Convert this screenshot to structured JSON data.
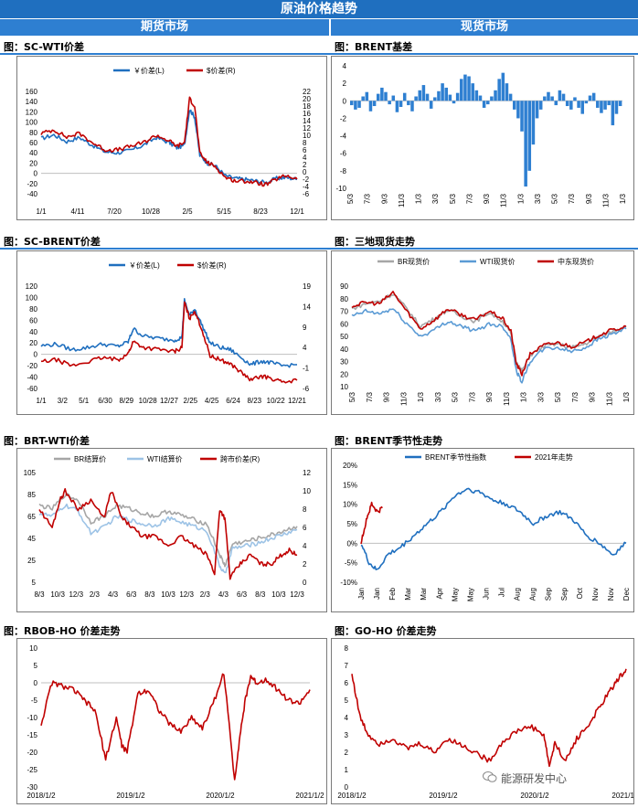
{
  "header": {
    "title": "原油价格趋势",
    "left_market": "期货市场",
    "right_market": "现货市场"
  },
  "watermark": "能源研发中心",
  "chart_data": [
    {
      "id": "c1",
      "type": "line",
      "title": "图：SC-WTI价差",
      "legend": [
        "￥价差(L)",
        "$价差(R)"
      ],
      "yticks_left": [
        -40,
        -20,
        0,
        20,
        40,
        60,
        80,
        100,
        120,
        140,
        160
      ],
      "ylim_left": [
        -40,
        160
      ],
      "yticks_right": [
        -6,
        -4,
        -2,
        0,
        2,
        4,
        6,
        8,
        10,
        12,
        14,
        16,
        18,
        20,
        22
      ],
      "ylim_right": [
        -6,
        22
      ],
      "xticks": [
        "1/1",
        "4/11",
        "7/20",
        "10/28",
        "2/5",
        "5/15",
        "8/23",
        "12/1"
      ],
      "series": [
        {
          "name": "￥价差(L)",
          "axis": "left",
          "color": "#1f6fbf",
          "x": [
            0,
            0.05,
            0.1,
            0.15,
            0.2,
            0.25,
            0.3,
            0.35,
            0.4,
            0.45,
            0.5,
            0.53,
            0.56,
            0.58,
            0.6,
            0.62,
            0.65,
            0.68,
            0.72,
            0.76,
            0.8,
            0.84,
            0.88,
            0.92,
            0.96,
            1
          ],
          "values": [
            68,
            75,
            62,
            70,
            55,
            42,
            40,
            45,
            55,
            70,
            60,
            50,
            55,
            125,
            110,
            35,
            20,
            15,
            -5,
            -10,
            -12,
            -15,
            -18,
            -10,
            -8,
            -12
          ]
        },
        {
          "name": "$价差(R)",
          "axis": "right",
          "color": "#c00000",
          "x": [
            0,
            0.05,
            0.1,
            0.15,
            0.2,
            0.25,
            0.3,
            0.35,
            0.4,
            0.45,
            0.5,
            0.53,
            0.56,
            0.58,
            0.6,
            0.62,
            0.65,
            0.68,
            0.72,
            0.76,
            0.8,
            0.84,
            0.88,
            0.92,
            0.96,
            1
          ],
          "values": [
            10.5,
            11.5,
            9.5,
            10.5,
            8,
            6,
            6,
            7,
            8,
            10,
            8.5,
            7,
            8,
            20,
            18,
            5,
            2.5,
            1.5,
            -1.5,
            -2.5,
            -2.5,
            -3,
            -3.5,
            -2,
            -1,
            -2
          ]
        }
      ]
    },
    {
      "id": "c2",
      "type": "bar",
      "title": "图：BRENT基差",
      "yticks": [
        -10,
        -8,
        -6,
        -4,
        -2,
        0,
        2,
        4
      ],
      "ylim": [
        -10,
        4
      ],
      "xticks": [
        "5/3",
        "7/3",
        "9/3",
        "11/3",
        "1/3",
        "3/3",
        "5/3",
        "7/3",
        "9/3",
        "11/3",
        "1/3",
        "3/3",
        "5/3",
        "7/3",
        "9/3",
        "11/3",
        "1/3"
      ],
      "color": "#2e7fd1",
      "values": [
        -0.5,
        -1,
        -0.8,
        0.5,
        1,
        -1.2,
        -0.6,
        0.8,
        1.5,
        1.0,
        -0.4,
        0.6,
        -1.3,
        -0.7,
        0.9,
        -0.5,
        -1.2,
        0.5,
        1.2,
        1.8,
        0.8,
        -0.9,
        0.4,
        1.1,
        2.0,
        1.5,
        0.7,
        -0.3,
        0.9,
        2.5,
        3.0,
        2.8,
        2.0,
        1.2,
        0.6,
        -0.8,
        -0.4,
        0.5,
        1.2,
        2.5,
        3.2,
        2.0,
        0.8,
        -1.0,
        -2.0,
        -3.5,
        -9.8,
        -8.0,
        -5.0,
        -2.0,
        -1.0,
        0.5,
        1.0,
        0.5,
        -0.5,
        1.2,
        0.8,
        -0.6,
        -1.0,
        0.4,
        -0.8,
        -1.5,
        -0.3,
        0.6,
        0.9,
        -0.8,
        -1.4,
        -1.0,
        -0.5,
        -2.8,
        -1.5,
        -0.6
      ]
    },
    {
      "id": "c3",
      "type": "line",
      "title": "图：SC-BRENT价差",
      "legend": [
        "￥价差(L)",
        "$价差(R)"
      ],
      "yticks_left": [
        -60,
        -40,
        -20,
        0,
        20,
        40,
        60,
        80,
        100,
        120
      ],
      "ylim_left": [
        -60,
        120
      ],
      "yticks_right": [
        -6,
        -1,
        4,
        9,
        14,
        19
      ],
      "ylim_right": [
        -6,
        19
      ],
      "xticks": [
        "1/1",
        "3/2",
        "5/1",
        "6/30",
        "8/29",
        "10/28",
        "12/27",
        "2/25",
        "4/25",
        "6/24",
        "8/23",
        "10/22",
        "12/21"
      ],
      "series": [
        {
          "name": "￥价差(L)",
          "axis": "left",
          "color": "#1f6fbf",
          "x": [
            0,
            0.06,
            0.12,
            0.18,
            0.24,
            0.3,
            0.34,
            0.36,
            0.4,
            0.46,
            0.52,
            0.55,
            0.56,
            0.58,
            0.6,
            0.63,
            0.66,
            0.7,
            0.74,
            0.78,
            0.82,
            0.86,
            0.9,
            0.94,
            1
          ],
          "values": [
            15,
            18,
            8,
            12,
            18,
            14,
            22,
            45,
            32,
            28,
            25,
            30,
            95,
            68,
            80,
            50,
            20,
            12,
            8,
            -5,
            -18,
            -12,
            -15,
            -20,
            -18
          ]
        },
        {
          "name": "$价差(R)",
          "axis": "right",
          "color": "#c00000",
          "x": [
            0,
            0.06,
            0.12,
            0.18,
            0.24,
            0.3,
            0.34,
            0.36,
            0.4,
            0.46,
            0.52,
            0.55,
            0.56,
            0.58,
            0.6,
            0.63,
            0.66,
            0.7,
            0.74,
            0.78,
            0.82,
            0.86,
            0.9,
            0.94,
            1
          ],
          "values": [
            0.5,
            1.0,
            -0.5,
            0.5,
            1.5,
            1.0,
            2.5,
            5.5,
            4.0,
            3.5,
            3.0,
            4.0,
            15,
            11,
            13,
            8,
            2,
            1,
            0,
            -2,
            -4,
            -3,
            -3.5,
            -4.5,
            -4
          ]
        }
      ]
    },
    {
      "id": "c4",
      "type": "line",
      "title": "图：三地现货走势",
      "legend": [
        "BR现货价",
        "WTI现货价",
        "中东现货价"
      ],
      "yticks": [
        10,
        20,
        30,
        40,
        50,
        60,
        70,
        80,
        90
      ],
      "ylim": [
        10,
        90
      ],
      "xticks": [
        "5/3",
        "7/3",
        "9/3",
        "11/3",
        "1/3",
        "3/3",
        "5/3",
        "7/3",
        "9/3",
        "11/3",
        "1/3",
        "3/3",
        "5/3",
        "7/3",
        "9/3",
        "11/3",
        "1/3"
      ],
      "series": [
        {
          "name": "BR现货价",
          "color": "#a6a6a6",
          "x": [
            0,
            0.05,
            0.1,
            0.15,
            0.2,
            0.25,
            0.3,
            0.35,
            0.4,
            0.45,
            0.5,
            0.55,
            0.58,
            0.6,
            0.62,
            0.65,
            0.7,
            0.75,
            0.8,
            0.85,
            0.9,
            0.95,
            1
          ],
          "values": [
            72,
            76,
            78,
            84,
            72,
            58,
            64,
            71,
            66,
            62,
            69,
            62,
            52,
            30,
            22,
            35,
            42,
            44,
            41,
            44,
            50,
            54,
            58
          ]
        },
        {
          "name": "WTI现货价",
          "color": "#5b9bd5",
          "x": [
            0,
            0.05,
            0.1,
            0.15,
            0.2,
            0.25,
            0.3,
            0.35,
            0.4,
            0.45,
            0.5,
            0.55,
            0.58,
            0.6,
            0.62,
            0.65,
            0.7,
            0.75,
            0.8,
            0.85,
            0.9,
            0.95,
            1
          ],
          "values": [
            66,
            70,
            68,
            72,
            60,
            50,
            55,
            62,
            58,
            54,
            60,
            58,
            48,
            22,
            14,
            30,
            40,
            41,
            38,
            41,
            48,
            52,
            56
          ]
        },
        {
          "name": "中东现货价",
          "color": "#c00000",
          "x": [
            0,
            0.05,
            0.1,
            0.15,
            0.2,
            0.25,
            0.3,
            0.35,
            0.4,
            0.45,
            0.5,
            0.55,
            0.58,
            0.6,
            0.62,
            0.65,
            0.7,
            0.75,
            0.8,
            0.85,
            0.9,
            0.95,
            1
          ],
          "values": [
            74,
            77,
            76,
            85,
            70,
            56,
            63,
            72,
            67,
            63,
            70,
            64,
            54,
            28,
            20,
            36,
            43,
            45,
            42,
            45,
            51,
            55,
            58
          ]
        }
      ]
    },
    {
      "id": "c5",
      "type": "line",
      "title": "图：BRT-WTI价差",
      "legend": [
        "BR结算价",
        "WTI结算价",
        "跨市价差(R)"
      ],
      "yticks_left": [
        5,
        25,
        45,
        65,
        85,
        105
      ],
      "ylim_left": [
        5,
        105
      ],
      "yticks_right": [
        0,
        2,
        4,
        6,
        8,
        10,
        12
      ],
      "ylim_right": [
        0,
        12
      ],
      "xticks": [
        "8/3",
        "10/3",
        "12/3",
        "2/3",
        "4/3",
        "6/3",
        "8/3",
        "10/3",
        "12/3",
        "2/3",
        "4/3",
        "6/3",
        "8/3",
        "10/3",
        "12/3"
      ],
      "series": [
        {
          "name": "BR结算价",
          "axis": "left",
          "color": "#a6a6a6",
          "x": [
            0,
            0.05,
            0.1,
            0.15,
            0.2,
            0.25,
            0.3,
            0.35,
            0.4,
            0.45,
            0.5,
            0.55,
            0.6,
            0.65,
            0.7,
            0.72,
            0.75,
            0.8,
            0.85,
            0.9,
            0.95,
            1
          ],
          "values": [
            75,
            72,
            85,
            80,
            60,
            65,
            75,
            72,
            68,
            65,
            70,
            66,
            62,
            58,
            30,
            20,
            40,
            42,
            45,
            48,
            52,
            56
          ]
        },
        {
          "name": "WTI结算价",
          "axis": "left",
          "color": "#9dc3e6",
          "x": [
            0,
            0.05,
            0.1,
            0.15,
            0.2,
            0.25,
            0.3,
            0.35,
            0.4,
            0.45,
            0.5,
            0.55,
            0.6,
            0.65,
            0.7,
            0.72,
            0.75,
            0.8,
            0.85,
            0.9,
            0.95,
            1
          ],
          "values": [
            68,
            65,
            75,
            70,
            50,
            55,
            65,
            62,
            58,
            57,
            63,
            60,
            56,
            52,
            20,
            12,
            36,
            38,
            41,
            45,
            49,
            53
          ]
        },
        {
          "name": "跨市价差(R)",
          "axis": "right",
          "color": "#c00000",
          "x": [
            0,
            0.05,
            0.08,
            0.1,
            0.15,
            0.2,
            0.25,
            0.28,
            0.32,
            0.36,
            0.4,
            0.45,
            0.5,
            0.55,
            0.6,
            0.65,
            0.68,
            0.7,
            0.72,
            0.74,
            0.78,
            0.82,
            0.86,
            0.9,
            0.94,
            0.97,
            1
          ],
          "values": [
            8,
            6,
            9,
            10,
            8,
            9,
            7,
            10,
            7,
            6,
            5,
            5,
            4,
            5,
            4,
            3,
            1,
            8,
            7,
            0.5,
            2,
            3,
            2,
            2,
            3,
            3.5,
            3
          ]
        }
      ]
    },
    {
      "id": "c6",
      "type": "line",
      "title": "图：BRENT季节性走势",
      "legend": [
        "BRENT季节性指数",
        "2021年走势"
      ],
      "yticks": [
        "-10%",
        "-5%",
        "0%",
        "5%",
        "10%",
        "15%",
        "20%"
      ],
      "ylim": [
        -10,
        20
      ],
      "xticks": [
        "Jan",
        "Jan",
        "Feb",
        "Mar",
        "Mar",
        "Apr",
        "May",
        "May",
        "Jun",
        "Jul",
        "Aug",
        "Aug",
        "Sep",
        "Sep",
        "Oct",
        "Nov",
        "Nov",
        "Dec"
      ],
      "series": [
        {
          "name": "BRENT季节性指数",
          "color": "#1f6fbf",
          "x": [
            0,
            0.03,
            0.06,
            0.1,
            0.15,
            0.2,
            0.25,
            0.3,
            0.35,
            0.4,
            0.45,
            0.5,
            0.55,
            0.6,
            0.65,
            0.7,
            0.75,
            0.8,
            0.85,
            0.9,
            0.95,
            1
          ],
          "values": [
            0,
            -5,
            -7,
            -3,
            -1,
            2,
            5,
            8,
            12,
            14,
            13,
            11,
            10,
            8,
            5,
            7,
            8,
            6,
            2,
            0,
            -3,
            0
          ]
        },
        {
          "name": "2021年走势",
          "color": "#c00000",
          "x": [
            0,
            0.02,
            0.04,
            0.06,
            0.08
          ],
          "values": [
            0,
            6,
            10,
            8,
            9
          ]
        }
      ]
    },
    {
      "id": "c7",
      "type": "line",
      "title": "图：RBOB-HO 价差走势",
      "yticks": [
        -30,
        -25,
        -20,
        -15,
        -10,
        -5,
        0,
        5,
        10
      ],
      "ylim": [
        -30,
        10
      ],
      "xticks": [
        "2018/1/2",
        "2019/1/2",
        "2020/1/2",
        "2021/1/2"
      ],
      "series": [
        {
          "name": "",
          "color": "#c00000",
          "x": [
            0,
            0.04,
            0.08,
            0.12,
            0.16,
            0.2,
            0.24,
            0.28,
            0.3,
            0.32,
            0.36,
            0.4,
            0.44,
            0.48,
            0.52,
            0.56,
            0.6,
            0.64,
            0.68,
            0.72,
            0.74,
            0.76,
            0.78,
            0.8,
            0.84,
            0.88,
            0.92,
            0.96,
            1
          ],
          "values": [
            -12,
            0,
            -1,
            -2,
            -5,
            -8,
            -22,
            -10,
            -18,
            -20,
            -3,
            -2,
            -8,
            -12,
            -14,
            -10,
            -13,
            -6,
            3,
            -28,
            -15,
            -5,
            2,
            0,
            1,
            -2,
            -5,
            -6,
            -2
          ]
        }
      ]
    },
    {
      "id": "c8",
      "type": "line",
      "title": "图：GO-HO 价差走势",
      "yticks": [
        0,
        1,
        2,
        3,
        4,
        5,
        6,
        7,
        8
      ],
      "ylim": [
        0,
        8
      ],
      "xticks": [
        "2018/1/2",
        "2019/1/2",
        "2020/1/2",
        "2021/1/2"
      ],
      "series": [
        {
          "name": "",
          "color": "#c00000",
          "x": [
            0,
            0.03,
            0.06,
            0.1,
            0.15,
            0.2,
            0.25,
            0.3,
            0.35,
            0.4,
            0.45,
            0.5,
            0.55,
            0.6,
            0.65,
            0.7,
            0.72,
            0.74,
            0.78,
            0.82,
            0.86,
            0.9,
            0.94,
            0.97,
            1
          ],
          "values": [
            6.5,
            4,
            3,
            2.5,
            2.8,
            2.2,
            2.5,
            2.0,
            2.8,
            2.4,
            2.0,
            1.5,
            2.6,
            3.2,
            3.5,
            3.0,
            1.2,
            2.5,
            1.5,
            2.8,
            3.5,
            4.5,
            5.5,
            6.2,
            6.8
          ]
        }
      ]
    }
  ]
}
